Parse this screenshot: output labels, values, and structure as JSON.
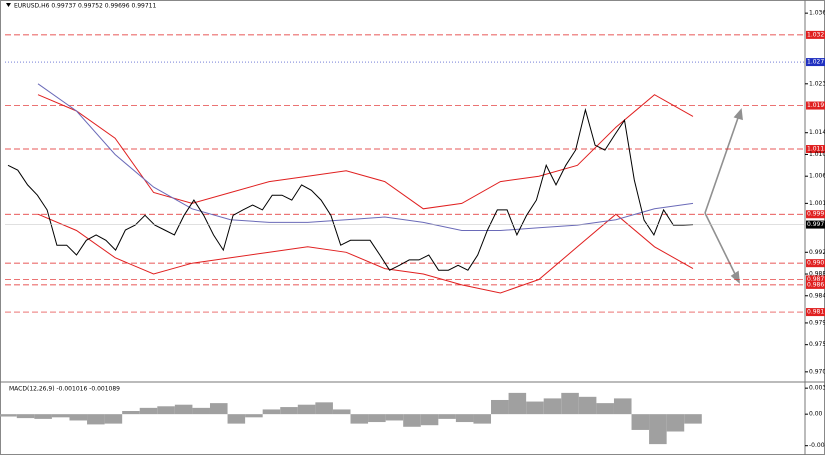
{
  "chart_data": [
    {
      "type": "line",
      "title": "EURUSD,H6 0.99737 0.99752 0.99696 0.99711",
      "ylim": [
        0.9685,
        1.0375
      ],
      "yticks": [
        1.036,
        1.023,
        1.014,
        {
          "value": 1.01,
          "label": "1.010"
        },
        1.006,
        1.001,
        0.992,
        0.988,
        0.984,
        0.979,
        0.975,
        {
          "value": 0.97,
          "label": "0.970"
        }
      ],
      "series": [
        {
          "color": "#000000",
          "values": [
            1.008,
            1.0071,
            1.0044,
            1.0025,
            0.9998,
            0.9933,
            0.9933,
            0.9915,
            0.9942,
            0.9952,
            0.9942,
            0.9924,
            0.9961,
            0.997,
            0.9988,
            0.997,
            0.9961,
            0.9952,
            0.9988,
            1.0016,
            0.9988,
            0.9952,
            0.9924,
            0.9988,
            0.9998,
            1.0007,
            0.9998,
            1.0025,
            1.0025,
            1.0016,
            1.0044,
            1.0034,
            1.0016,
            0.9988,
            0.9933,
            0.9942,
            0.9942,
            0.9942,
            0.9915,
            0.9887,
            0.9896,
            0.9906,
            0.9906,
            0.9915,
            0.9887,
            0.9887,
            0.9896,
            0.9887,
            0.9915,
            0.9961,
            0.9998,
            0.9998,
            0.9952,
            0.9988,
            1.0016,
            1.008,
            1.0044,
            1.008,
            1.0108,
            1.0182,
            1.0117,
            1.0108,
            1.0136,
            1.0163,
            1.0053,
            0.9979,
            0.9952,
            0.9998,
            0.997,
            0.997,
            0.9971
          ]
        }
      ],
      "bands": [
        {
          "color": "#e02020",
          "values": [
            1.021,
            1.018,
            1.013,
            1.003,
            1.001,
            1.003,
            1.005,
            1.006,
            1.007,
            1.005,
            1.0,
            1.001,
            1.005,
            1.006,
            1.008,
            1.015,
            1.021,
            1.017
          ]
        },
        {
          "color": "#e02020",
          "values": [
            0.999,
            0.996,
            0.991,
            0.988,
            0.99,
            0.991,
            0.992,
            0.993,
            0.992,
            0.989,
            0.988,
            0.986,
            0.9845,
            0.987,
            0.993,
            0.999,
            0.993,
            0.989
          ]
        },
        {
          "color": "#6a6ab8",
          "values": [
            1.023,
            1.018,
            1.01,
            1.004,
            1.0,
            0.998,
            0.9975,
            0.9975,
            0.998,
            0.9985,
            0.9975,
            0.996,
            0.996,
            0.9965,
            0.997,
            0.998,
            1.0,
            1.001
          ]
        }
      ],
      "levels": [
        {
          "value": 1.032,
          "color": "#e02020"
        },
        {
          "value": 1.027,
          "color": "#2030c0"
        },
        {
          "value": 1.019,
          "color": "#e02020"
        },
        {
          "value": 1.011,
          "color": "#e02020"
        },
        {
          "value": 0.999,
          "color": "#e02020"
        },
        {
          "value": 0.99,
          "label": "0.990",
          "color": "#e02020"
        },
        {
          "value": 0.987,
          "color": "#e02020"
        },
        {
          "value": 0.986,
          "color": "#e02020"
        },
        {
          "value": 0.981,
          "color": "#e02020"
        }
      ],
      "price_label": {
        "value": 0.9971,
        "label": "0.997"
      }
    },
    {
      "type": "bar",
      "title": "MACD(12,26,9) -0.001016 -0.001089",
      "ylim": [
        -0.0048,
        0.0037
      ],
      "yticks": [
        0.0033,
        {
          "value": 0,
          "label": "0.00"
        },
        -0.004
      ],
      "color": "#a0a0a0",
      "values": [
        -0.0003,
        -0.0005,
        -0.0006,
        -0.0004,
        -0.0008,
        -0.0013,
        -0.0012,
        0.0004,
        0.0008,
        0.001,
        0.0012,
        0.0008,
        0.0014,
        -0.0012,
        -0.0004,
        0.0006,
        0.0009,
        0.0012,
        0.0015,
        0.0006,
        -0.0012,
        -0.001,
        -0.0008,
        -0.0016,
        -0.0014,
        -0.0006,
        -0.001,
        -0.0012,
        0.0018,
        0.0027,
        0.0016,
        0.002,
        0.0027,
        0.0022,
        0.0014,
        0.002,
        -0.002,
        -0.0038,
        -0.0022,
        -0.0012
      ]
    }
  ]
}
